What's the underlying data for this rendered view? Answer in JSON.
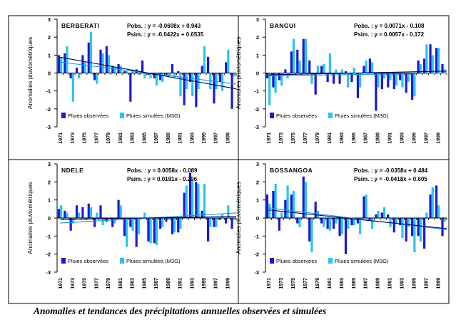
{
  "caption": "Anomalies et tendances des précipitations annuelles observées et simulées",
  "colors": {
    "observed": "#1a1ad2",
    "simulated": "#2ac4f0",
    "trend_observed": "#000066",
    "trend_simulated": "#1a9ad8"
  },
  "chart_data": [
    {
      "type": "bar",
      "station": "BERBERATI",
      "ylabel": "Anomalies pluviométriques",
      "ylim": [
        -3,
        3
      ],
      "yticks": [
        -3,
        -2,
        -1,
        0,
        1,
        2,
        3
      ],
      "x_start": 1971,
      "x_tick_labels": [
        "1971",
        "1973",
        "1975",
        "1977",
        "1979",
        "1981",
        "1983",
        "1985",
        "1987",
        "1989",
        "1991",
        "1993",
        "1995",
        "1997",
        "1999"
      ],
      "equations": [
        "Pobs. : y = -0.0608x + 0.943",
        "Psim. : y = -0.0422x + 0.6535"
      ],
      "legend": [
        "Pluies observées",
        "Pluies simulées (M3G)"
      ],
      "trends": {
        "observed": [
          -0.0608,
          0.943
        ],
        "simulated": [
          -0.0422,
          0.6535
        ]
      },
      "series": [
        {
          "name": "Pluies observées",
          "values": [
            1.0,
            1.1,
            -0.3,
            0.3,
            1.0,
            1.7,
            -0.4,
            1.3,
            1.5,
            0.4,
            0.5,
            0.1,
            -1.6,
            0.2,
            0.7,
            -0.1,
            -0.3,
            -0.4,
            -0.1,
            0.5,
            0.1,
            -1.8,
            -0.5,
            -1.9,
            0.4,
            0.9,
            -1.7,
            -0.5,
            0.6,
            -2.0
          ]
        },
        {
          "name": "Pluies simulées (M3G)",
          "values": [
            0.9,
            1.5,
            -1.6,
            -0.3,
            0.6,
            2.3,
            -0.6,
            1.1,
            1.0,
            0.3,
            0.4,
            0.1,
            0.2,
            -0.1,
            -0.3,
            -0.3,
            -0.7,
            -0.5,
            -0.2,
            -0.3,
            -1.3,
            -0.9,
            -1.3,
            -0.9,
            1.5,
            -0.9,
            -0.9,
            -1.0,
            1.3,
            -0.2
          ]
        }
      ]
    },
    {
      "type": "bar",
      "station": "BANGUI",
      "ylabel": "Anomalies pluviométriques",
      "ylim": [
        -3,
        3
      ],
      "yticks": [
        -3,
        -2,
        -1,
        0,
        1,
        2,
        3
      ],
      "x_start": 1971,
      "x_tick_labels": [
        "1971",
        "1973",
        "1975",
        "1977",
        "1979",
        "1981",
        "1983",
        "1985",
        "1987",
        "1989",
        "1991",
        "1993",
        "1995",
        "1997",
        "1999"
      ],
      "equations": [
        "Pobs. : y = 0.0071x - 0.108",
        "Psim. : y = 0.0057x - 0.172"
      ],
      "legend": [
        "Pluies observées",
        "Pluies simulées (M3G)"
      ],
      "trends": {
        "observed": [
          0.0071,
          -0.108
        ],
        "simulated": [
          0.0057,
          -0.172
        ]
      },
      "series": [
        {
          "name": "Pluies observées",
          "values": [
            -0.3,
            -0.8,
            -0.4,
            0.2,
            1.2,
            1.3,
            1.9,
            0.7,
            -1.2,
            0.4,
            -0.5,
            -0.6,
            -0.6,
            0.1,
            -0.5,
            -1.4,
            0.4,
            0.8,
            -2.1,
            -0.9,
            -0.8,
            -0.9,
            -0.4,
            -1.1,
            -1.5,
            0.7,
            0.8,
            1.6,
            1.4,
            0.5
          ]
        },
        {
          "name": "Pluies simulées (M3G)",
          "values": [
            -1.8,
            -1.1,
            -0.7,
            -0.3,
            1.9,
            0.7,
            1.9,
            -0.6,
            0.4,
            0.5,
            1.1,
            0.2,
            0.2,
            -0.8,
            0.3,
            -0.8,
            0.7,
            0.6,
            -0.8,
            -0.3,
            -0.4,
            -0.7,
            -0.8,
            -0.5,
            -1.3,
            0.5,
            1.6,
            1.0,
            1.4,
            0.2
          ]
        }
      ]
    },
    {
      "type": "bar",
      "station": "NDELE",
      "ylabel": "Anomalies pluviométriques",
      "ylim": [
        -3,
        3
      ],
      "yticks": [
        -3,
        -2,
        -1,
        0,
        1,
        2,
        3
      ],
      "x_start": 1971,
      "x_tick_labels": [
        "1971",
        "1973",
        "1975",
        "1977",
        "1979",
        "1981",
        "1983",
        "1985",
        "1987",
        "1989",
        "1991",
        "1993",
        "1995",
        "1997",
        "1999"
      ],
      "equations": [
        "Pobs. : y = 0.0058x - 0.089",
        "Psim. : y = 0.0191x - 0.296"
      ],
      "legend": [
        "Pluies observées",
        "Pluies simulées (M3G)"
      ],
      "trends": {
        "observed": [
          0.0058,
          -0.089
        ],
        "simulated": [
          0.0191,
          -0.296
        ]
      },
      "series": [
        {
          "name": "Pluies observées",
          "values": [
            0.5,
            0.4,
            -0.7,
            0.7,
            0.6,
            0.8,
            -0.5,
            0.7,
            -0.2,
            -0.5,
            1.0,
            -1.0,
            -0.5,
            -1.6,
            0.0,
            -1.3,
            -1.4,
            -0.6,
            -0.2,
            -0.9,
            -0.8,
            1.4,
            2.5,
            2.0,
            0.4,
            -1.3,
            -0.5,
            -0.1,
            -0.3,
            -0.6
          ]
        },
        {
          "name": "Pluies simulées (M3G)",
          "values": [
            0.7,
            0.3,
            -0.3,
            0.3,
            -0.1,
            0.6,
            0.3,
            -0.4,
            0.0,
            -0.3,
            0.7,
            -1.6,
            -0.7,
            -0.9,
            0.3,
            -1.4,
            -1.5,
            -0.5,
            -0.1,
            -0.8,
            -0.6,
            1.8,
            2.1,
            1.9,
            1.9,
            -0.5,
            -0.5,
            0.2,
            0.7,
            -0.1
          ]
        }
      ]
    },
    {
      "type": "bar",
      "station": "BOSSANGOA",
      "ylabel": "Anomalies pluviométriques",
      "ylim": [
        -3,
        3
      ],
      "yticks": [
        -3,
        -2,
        -1,
        0,
        1,
        2,
        3
      ],
      "x_start": 1971,
      "x_tick_labels": [
        "1971",
        "1973",
        "1975",
        "1977",
        "1979",
        "1981",
        "1983",
        "1985",
        "1987",
        "1989",
        "1991",
        "1993",
        "1995",
        "1997",
        "1999"
      ],
      "equations": [
        "Pobs. : y = -0.0358x + 0.484",
        "Psim. : y = -0.0418x + 0.605"
      ],
      "legend": [
        "Pluies observées",
        "Pluies simulées (M3G)"
      ],
      "trends": {
        "observed": [
          -0.0358,
          0.484
        ],
        "simulated": [
          -0.0418,
          0.605
        ]
      },
      "series": [
        {
          "name": "Pluies observées",
          "values": [
            1.3,
            1.5,
            -0.7,
            1.0,
            1.3,
            -0.3,
            2.3,
            -1.3,
            0.9,
            -0.3,
            -0.6,
            -0.6,
            -1.0,
            -2.0,
            -0.4,
            -0.3,
            1.2,
            -0.1,
            0.2,
            0.3,
            0.2,
            -0.8,
            -0.4,
            -1.3,
            -1.0,
            -1.0,
            -1.7,
            1.3,
            1.8,
            -1.0
          ]
        },
        {
          "name": "Pluies simulées (M3G)",
          "values": [
            0.8,
            1.9,
            0.3,
            1.8,
            1.5,
            -0.5,
            2.0,
            -1.9,
            0.4,
            -0.5,
            -0.7,
            -0.3,
            -0.9,
            -0.6,
            -0.4,
            -0.9,
            1.3,
            -0.6,
            0.4,
            0.6,
            -0.5,
            -0.3,
            -1.1,
            -0.5,
            -1.9,
            -1.3,
            0.3,
            1.7,
            0.7,
            -0.2
          ]
        }
      ]
    }
  ]
}
